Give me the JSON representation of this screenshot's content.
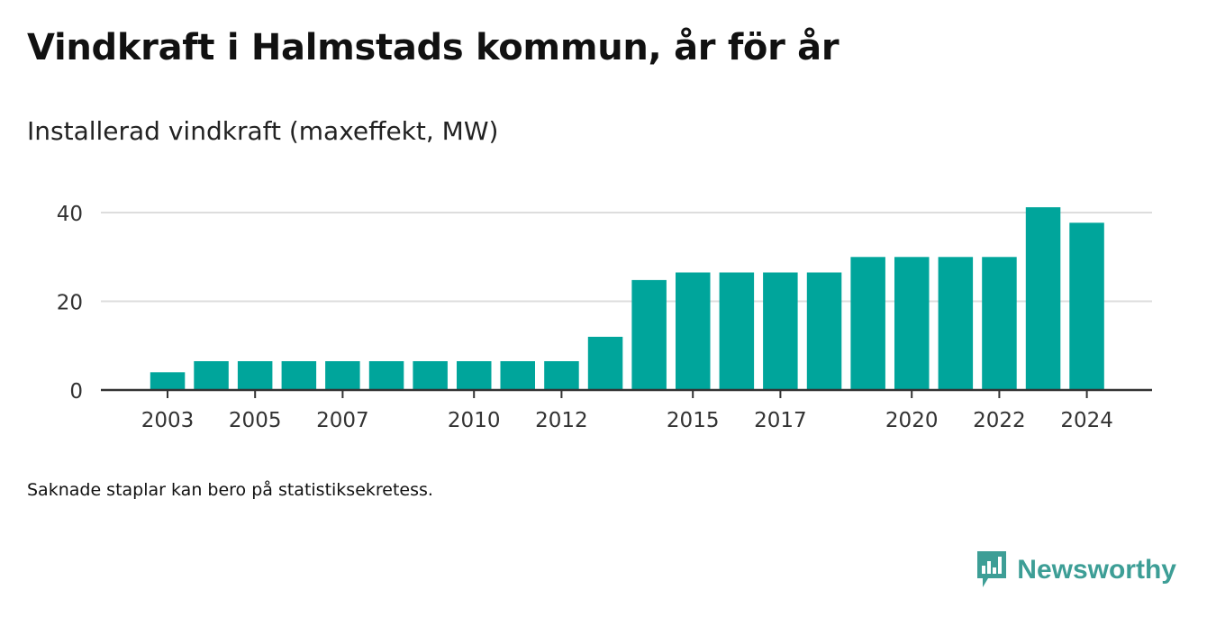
{
  "header": {
    "title": "Vindkraft i Halmstads kommun, år för år",
    "subtitle": "Installerad vindkraft (maxeffekt, MW)"
  },
  "footnote": "Saknade staplar kan bero på statistiksekretess.",
  "brand": {
    "name": "Newsworthy",
    "icon": "newsworthy-logo-icon",
    "color": "#3d9e96"
  },
  "colors": {
    "bar": "#00a59b",
    "grid": "#dddddd",
    "axis": "#333333"
  },
  "chart_data": {
    "type": "bar",
    "title": "Vindkraft i Halmstads kommun, år för år",
    "subtitle": "Installerad vindkraft (maxeffekt, MW)",
    "xlabel": "",
    "ylabel": "",
    "categories": [
      "2003",
      "2004",
      "2005",
      "2006",
      "2007",
      "2008",
      "2009",
      "2010",
      "2011",
      "2012",
      "2013",
      "2014",
      "2015",
      "2016",
      "2017",
      "2018",
      "2019",
      "2020",
      "2021",
      "2022",
      "2023",
      "2024"
    ],
    "values": [
      4,
      6.5,
      6.5,
      6.5,
      6.5,
      6.5,
      6.5,
      6.5,
      6.5,
      6.5,
      12,
      24.8,
      26.5,
      26.5,
      26.5,
      26.5,
      30,
      30,
      30,
      30,
      41.2,
      37.7
    ],
    "x_tick_labels": [
      "2003",
      "2005",
      "2007",
      "2010",
      "2012",
      "2015",
      "2017",
      "2020",
      "2022",
      "2024"
    ],
    "y_ticks": [
      0,
      20,
      40
    ],
    "ylim": [
      0,
      42
    ],
    "grid": true,
    "legend": "none"
  }
}
